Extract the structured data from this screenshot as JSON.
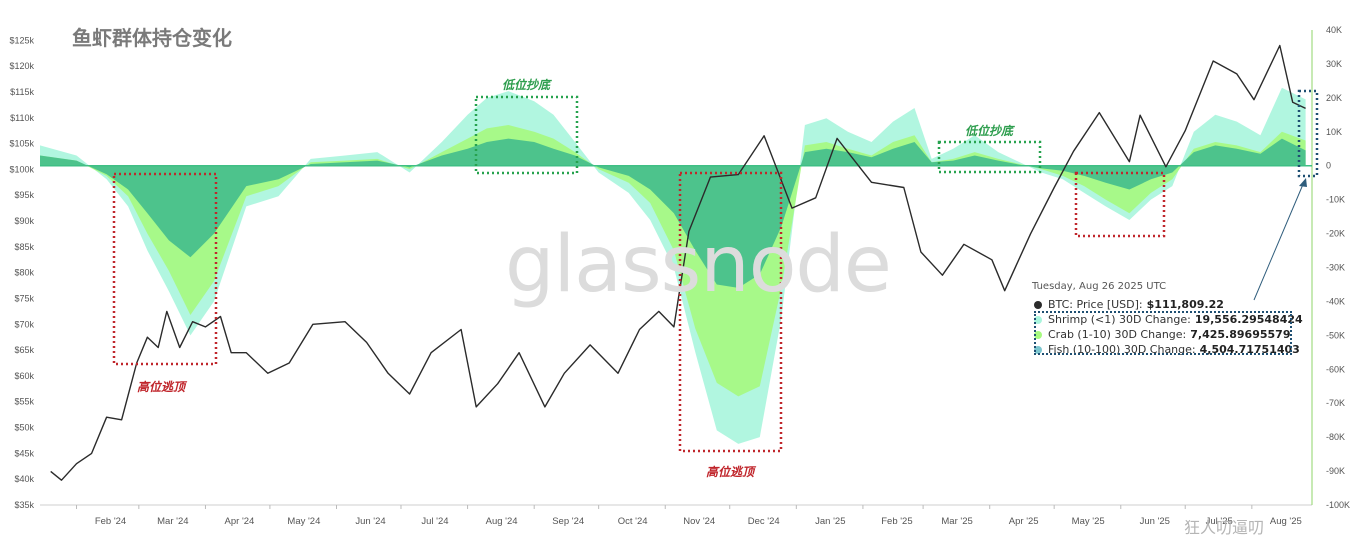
{
  "title": "鱼虾群体持仓变化",
  "watermark": "glassnode",
  "corner_mark": "狂人叨逼叨",
  "colors": {
    "price": "#2b2b2b",
    "shrimp": "#a9f5dd",
    "crab": "#a6fa7f",
    "fish": "#48c08c",
    "green_box": "#26a24e",
    "red_box": "#c0262c",
    "tooltip_box": "#1e4f72",
    "right_axis": "#8fd66a"
  },
  "annotations": [
    {
      "text": "低位抄底",
      "color": "green"
    },
    {
      "text": "低位抄底",
      "color": "green"
    },
    {
      "text": "高位逃顶",
      "color": "red"
    },
    {
      "text": "高位逃顶",
      "color": "red"
    }
  ],
  "tooltip": {
    "date": "Tuesday, Aug 26 2025 UTC",
    "rows": [
      {
        "label": "BTC: Price [USD]:",
        "value": "$111,809.22",
        "color": "#2b2b2b"
      },
      {
        "label": "Shrimp (<1) 30D Change:",
        "value": "19,556.29548424",
        "color": "#a9f5dd"
      },
      {
        "label": "Crab (1-10) 30D Change:",
        "value": "7,425.89695579",
        "color": "#a6fa7f"
      },
      {
        "label": "Fish (10-100) 30D Change:",
        "value": "4,504.71751403",
        "color": "#7cc6cf"
      }
    ]
  },
  "chart_data": {
    "type": "area",
    "title": "鱼虾群体持仓变化",
    "x_ticks": [
      "Feb '24",
      "Mar '24",
      "Apr '24",
      "May '24",
      "Jun '24",
      "Jul '24",
      "Aug '24",
      "Sep '24",
      "Oct '24",
      "Nov '24",
      "Dec '24",
      "Jan '25",
      "Feb '25",
      "Mar '25",
      "Apr '25",
      "May '25",
      "Jun '25",
      "Jul '25",
      "Aug '25"
    ],
    "left_axis": {
      "ticks": [
        "$35k",
        "$40k",
        "$45k",
        "$50k",
        "$55k",
        "$60k",
        "$65k",
        "$70k",
        "$75k",
        "$80k",
        "$85k",
        "$90k",
        "$95k",
        "$100k",
        "$105k",
        "$110k",
        "$115k",
        "$120k",
        "$125k"
      ],
      "ylim": [
        35000,
        127000
      ]
    },
    "right_axis": {
      "ticks": [
        "40K",
        "30K",
        "20K",
        "10K",
        "0",
        "-10K",
        "-20K",
        "-30K",
        "-40K",
        "-50K",
        "-60K",
        "-70K",
        "-80K",
        "-90K",
        "-100K"
      ],
      "ylim": [
        -100000,
        40000
      ]
    },
    "price_series": {
      "name": "BTC: Price [USD]",
      "x": [
        "2024-01-20",
        "2024-01-25",
        "2024-02-01",
        "2024-02-08",
        "2024-02-15",
        "2024-02-22",
        "2024-02-29",
        "2024-03-05",
        "2024-03-10",
        "2024-03-14",
        "2024-03-20",
        "2024-03-26",
        "2024-04-01",
        "2024-04-08",
        "2024-04-13",
        "2024-04-20",
        "2024-04-30",
        "2024-05-10",
        "2024-05-21",
        "2024-06-05",
        "2024-06-15",
        "2024-06-25",
        "2024-07-05",
        "2024-07-15",
        "2024-07-29",
        "2024-08-05",
        "2024-08-15",
        "2024-08-25",
        "2024-09-06",
        "2024-09-15",
        "2024-09-27",
        "2024-10-10",
        "2024-10-20",
        "2024-10-29",
        "2024-11-05",
        "2024-11-12",
        "2024-11-22",
        "2024-12-05",
        "2024-12-17",
        "2024-12-30",
        "2025-01-10",
        "2025-01-20",
        "2025-02-05",
        "2025-02-20",
        "2025-02-28",
        "2025-03-10",
        "2025-03-20",
        "2025-04-02",
        "2025-04-08",
        "2025-04-20",
        "2025-05-01",
        "2025-05-10",
        "2025-05-22",
        "2025-06-05",
        "2025-06-10",
        "2025-06-22",
        "2025-07-01",
        "2025-07-14",
        "2025-07-25",
        "2025-08-02",
        "2025-08-14",
        "2025-08-20",
        "2025-08-26"
      ],
      "values": [
        41500,
        39800,
        43000,
        45000,
        52000,
        51500,
        62500,
        67500,
        65500,
        72500,
        65500,
        70500,
        69500,
        71500,
        64500,
        64500,
        60500,
        62500,
        70000,
        70500,
        66500,
        60500,
        56500,
        64500,
        69000,
        54000,
        58500,
        64500,
        54000,
        60500,
        66000,
        60500,
        69000,
        72500,
        69500,
        88000,
        98500,
        99000,
        106500,
        92500,
        94500,
        106000,
        97500,
        96500,
        84000,
        79500,
        85500,
        82500,
        76500,
        87500,
        96500,
        103500,
        111000,
        101500,
        110500,
        100500,
        107500,
        121000,
        118500,
        113500,
        124000,
        113000,
        111809
      ]
    },
    "series": [
      {
        "name": "Shrimp (<1) 30D Change",
        "color": "#a9f5dd",
        "x": [
          "2024-01-15",
          "2024-02-01",
          "2024-02-15",
          "2024-02-25",
          "2024-03-05",
          "2024-03-15",
          "2024-03-25",
          "2024-04-05",
          "2024-04-20",
          "2024-05-05",
          "2024-05-20",
          "2024-06-05",
          "2024-06-20",
          "2024-07-05",
          "2024-07-20",
          "2024-08-01",
          "2024-08-10",
          "2024-08-20",
          "2024-09-01",
          "2024-09-10",
          "2024-09-20",
          "2024-10-01",
          "2024-10-15",
          "2024-10-25",
          "2024-11-05",
          "2024-11-15",
          "2024-11-25",
          "2024-12-05",
          "2024-12-15",
          "2024-12-25",
          "2025-01-05",
          "2025-01-15",
          "2025-01-25",
          "2025-02-05",
          "2025-02-15",
          "2025-02-25",
          "2025-03-05",
          "2025-03-15",
          "2025-03-25",
          "2025-04-05",
          "2025-04-15",
          "2025-04-25",
          "2025-05-05",
          "2025-05-15",
          "2025-05-25",
          "2025-06-05",
          "2025-06-15",
          "2025-06-25",
          "2025-07-05",
          "2025-07-15",
          "2025-07-25",
          "2025-08-05",
          "2025-08-15",
          "2025-08-26"
        ],
        "values": [
          6000,
          3000,
          -4000,
          -12000,
          -25000,
          -37000,
          -50000,
          -40000,
          -12000,
          -9000,
          2000,
          3000,
          4000,
          -2000,
          7000,
          15000,
          20000,
          22000,
          19000,
          15000,
          7000,
          -2000,
          -8000,
          -16000,
          -30000,
          -55000,
          -78000,
          -82000,
          -80000,
          -45000,
          12000,
          14000,
          10000,
          7000,
          13000,
          17000,
          2000,
          5000,
          9000,
          4000,
          1000,
          -2000,
          -4000,
          -8000,
          -12000,
          -16000,
          -10000,
          -6000,
          10000,
          15000,
          13000,
          9000,
          23000,
          19556
        ]
      },
      {
        "name": "Crab (1-10) 30D Change",
        "color": "#a6fa7f",
        "x": [
          "2024-01-15",
          "2024-02-01",
          "2024-02-15",
          "2024-02-25",
          "2024-03-05",
          "2024-03-15",
          "2024-03-25",
          "2024-04-05",
          "2024-04-20",
          "2024-05-05",
          "2024-05-20",
          "2024-06-05",
          "2024-06-20",
          "2024-07-05",
          "2024-07-20",
          "2024-08-01",
          "2024-08-10",
          "2024-08-20",
          "2024-09-01",
          "2024-09-10",
          "2024-09-20",
          "2024-10-01",
          "2024-10-15",
          "2024-10-25",
          "2024-11-05",
          "2024-11-15",
          "2024-11-25",
          "2024-12-05",
          "2024-12-15",
          "2024-12-25",
          "2025-01-05",
          "2025-01-15",
          "2025-01-25",
          "2025-02-05",
          "2025-02-15",
          "2025-02-25",
          "2025-03-05",
          "2025-03-15",
          "2025-03-25",
          "2025-04-05",
          "2025-04-15",
          "2025-04-25",
          "2025-05-05",
          "2025-05-15",
          "2025-05-25",
          "2025-06-05",
          "2025-06-15",
          "2025-06-25",
          "2025-07-05",
          "2025-07-15",
          "2025-07-25",
          "2025-08-05",
          "2025-08-15",
          "2025-08-26"
        ],
        "values": [
          3000,
          1500,
          -3000,
          -9000,
          -20000,
          -31000,
          -44000,
          -34000,
          -9000,
          -6000,
          1000,
          1500,
          2000,
          -1000,
          4000,
          8000,
          11000,
          12000,
          10000,
          8000,
          4000,
          -1000,
          -5000,
          -11000,
          -25000,
          -48000,
          -64000,
          -68000,
          -65000,
          -36000,
          6000,
          7000,
          5000,
          3000,
          7000,
          9000,
          1000,
          2000,
          4000,
          2000,
          500,
          -1000,
          -3000,
          -6000,
          -10000,
          -14000,
          -8000,
          -4000,
          5000,
          7000,
          6000,
          4000,
          10000,
          7426
        ]
      },
      {
        "name": "Fish (10-100) 30D Change",
        "color": "#48c08c",
        "x": [
          "2024-01-15",
          "2024-02-01",
          "2024-02-15",
          "2024-02-25",
          "2024-03-05",
          "2024-03-15",
          "2024-03-25",
          "2024-04-05",
          "2024-04-20",
          "2024-05-05",
          "2024-05-20",
          "2024-06-05",
          "2024-06-20",
          "2024-07-05",
          "2024-07-20",
          "2024-08-01",
          "2024-08-10",
          "2024-08-20",
          "2024-09-01",
          "2024-09-10",
          "2024-09-20",
          "2024-10-01",
          "2024-10-15",
          "2024-10-25",
          "2024-11-05",
          "2024-11-15",
          "2024-11-25",
          "2024-12-05",
          "2024-12-15",
          "2024-12-25",
          "2025-01-05",
          "2025-01-15",
          "2025-01-25",
          "2025-02-05",
          "2025-02-15",
          "2025-02-25",
          "2025-03-05",
          "2025-03-15",
          "2025-03-25",
          "2025-04-05",
          "2025-04-15",
          "2025-04-25",
          "2025-05-05",
          "2025-05-15",
          "2025-05-25",
          "2025-06-05",
          "2025-06-15",
          "2025-06-25",
          "2025-07-05",
          "2025-07-15",
          "2025-07-25",
          "2025-08-05",
          "2025-08-15",
          "2025-08-26"
        ],
        "values": [
          3000,
          1500,
          -2500,
          -7000,
          -14000,
          -22000,
          -27000,
          -20000,
          -6000,
          -4000,
          500,
          1000,
          1500,
          -500,
          3000,
          5000,
          7000,
          8000,
          7000,
          5000,
          3000,
          -500,
          -3000,
          -7000,
          -14000,
          -25000,
          -35000,
          -36000,
          -32000,
          -18000,
          4000,
          5000,
          4000,
          2500,
          5000,
          7000,
          1000,
          1500,
          3000,
          1500,
          300,
          -800,
          -1500,
          -3000,
          -5000,
          -7000,
          -4000,
          -2000,
          4000,
          6000,
          5000,
          3500,
          8000,
          4505
        ]
      }
    ]
  }
}
